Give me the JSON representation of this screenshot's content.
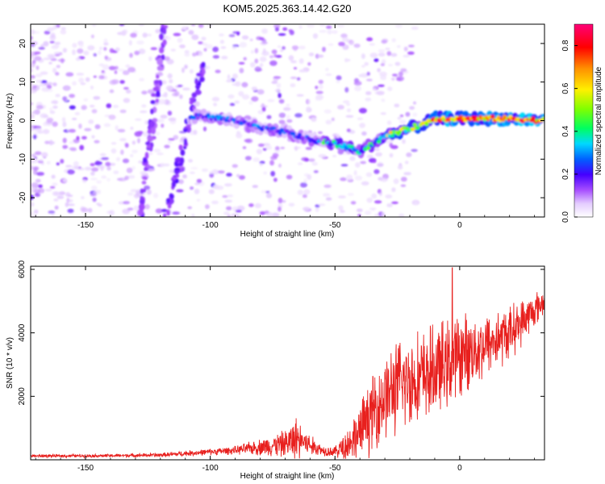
{
  "title": "KOM5.2025.363.14.42.G20",
  "colors": {
    "snr_line": "#e8201e",
    "axis": "#000000"
  },
  "chart_data": [
    {
      "type": "heatmap",
      "name": "spectrogram",
      "xlabel": "Height of straight line (km)",
      "ylabel": "Frequency (Hz)",
      "xlim": [
        -172,
        34
      ],
      "ylim": [
        -25,
        25
      ],
      "x_ticks": [
        -150,
        -100,
        -50,
        0
      ],
      "y_ticks": [
        -20,
        -10,
        0,
        10,
        20
      ],
      "colorbar": {
        "label": "Normalized spectral amplitude",
        "range": [
          0,
          0.9
        ],
        "ticks": [
          "0.0",
          "0.2",
          "0.4",
          "0.6",
          "0.8"
        ],
        "tick_values": [
          0.0,
          0.2,
          0.4,
          0.6,
          0.8
        ]
      },
      "features": [
        {
          "name": "rising streak A",
          "x": [
            -118,
            -103
          ],
          "y": [
            -25,
            14
          ],
          "amplitude": 0.12
        },
        {
          "name": "rising streak B",
          "x": [
            -128,
            -118
          ],
          "y": [
            -25,
            25
          ],
          "amplitude": 0.1
        },
        {
          "name": "main track",
          "points": [
            [
              -108,
              1
            ],
            [
              -100,
              1
            ],
            [
              -90,
              0
            ],
            [
              -80,
              -2
            ],
            [
              -70,
              -3
            ],
            [
              -60,
              -5
            ],
            [
              -50,
              -6
            ],
            [
              -45,
              -7
            ],
            [
              -40,
              -8
            ],
            [
              -35,
              -6
            ],
            [
              -30,
              -4
            ],
            [
              -25,
              -3
            ],
            [
              -20,
              -2
            ],
            [
              -15,
              -1
            ],
            [
              -10,
              0.5
            ],
            [
              0,
              0.5
            ],
            [
              10,
              0.5
            ],
            [
              20,
              0.5
            ],
            [
              34,
              0
            ]
          ],
          "amplitude_range": [
            0.1,
            0.85
          ]
        }
      ]
    },
    {
      "type": "line",
      "name": "snr",
      "xlabel": "Height of straight line (km)",
      "ylabel": "SNR (10 * v/v)",
      "xlim": [
        -172,
        34
      ],
      "ylim": [
        0,
        6100
      ],
      "x_ticks": [
        -150,
        -100,
        -50,
        0
      ],
      "y_ticks": [
        2000,
        4000,
        6000
      ],
      "envelope": {
        "x": [
          -172,
          -140,
          -120,
          -100,
          -90,
          -80,
          -70,
          -65,
          -60,
          -55,
          -50,
          -45,
          -40,
          -35,
          -30,
          -25,
          -20,
          -15,
          -10,
          -5,
          0,
          10,
          20,
          34
        ],
        "base": [
          120,
          130,
          150,
          250,
          300,
          400,
          500,
          700,
          450,
          300,
          250,
          500,
          900,
          1500,
          2000,
          2300,
          2500,
          2600,
          2800,
          3000,
          3300,
          3600,
          4000,
          5000
        ],
        "amp": [
          60,
          60,
          80,
          120,
          150,
          300,
          500,
          800,
          400,
          200,
          200,
          600,
          1000,
          1400,
          1600,
          1700,
          1700,
          1700,
          1700,
          1600,
          1500,
          1200,
          1000,
          500
        ]
      },
      "spike": {
        "x": -3,
        "y": 6050
      }
    }
  ]
}
